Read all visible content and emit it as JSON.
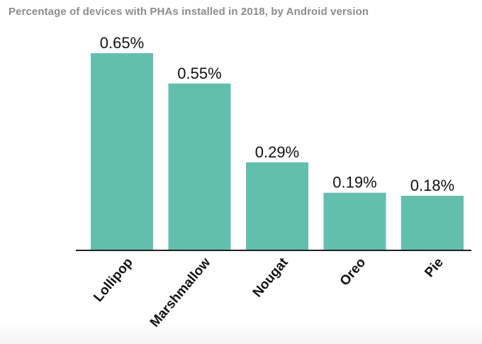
{
  "chart_data": {
    "type": "bar",
    "title": "Percentage of devices with PHAs installed in 2018, by Android version",
    "categories": [
      "Lollipop",
      "Marshmallow",
      "Nougat",
      "Oreo",
      "Pie"
    ],
    "values": [
      0.65,
      0.55,
      0.29,
      0.19,
      0.18
    ],
    "value_labels": [
      "0.65%",
      "0.55%",
      "0.29%",
      "0.19%",
      "0.18%"
    ],
    "xlabel": "",
    "ylabel": "",
    "ylim": [
      0,
      0.65
    ],
    "grid": false,
    "bar_color": "#62bfac",
    "axis_color": "#222222"
  }
}
